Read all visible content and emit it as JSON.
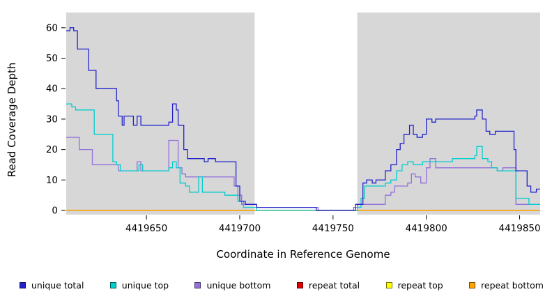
{
  "chart_data": {
    "type": "line",
    "step": true,
    "title": "",
    "xlabel": "Coordinate in Reference Genome",
    "ylabel": "Read Coverage Depth",
    "xlim": [
      4419607,
      4419861
    ],
    "ylim": [
      0,
      65
    ],
    "xticks": [
      4419650,
      4419700,
      4419750,
      4419800,
      4419850
    ],
    "yticks": [
      0,
      10,
      20,
      30,
      40,
      50,
      60
    ],
    "grid": false,
    "legend_position": "bottom",
    "panel_color": "#d7d7d7",
    "shaded_regions": [
      {
        "x0": 4419607,
        "x1": 4419708
      },
      {
        "x0": 4419763,
        "x1": 4419861
      }
    ],
    "series": [
      {
        "name": "unique total",
        "color": "#2222cc",
        "points": [
          [
            4419607,
            59
          ],
          [
            4419609,
            60
          ],
          [
            4419611,
            59
          ],
          [
            4419613,
            53
          ],
          [
            4419617,
            53
          ],
          [
            4419619,
            46
          ],
          [
            4419622,
            46
          ],
          [
            4419623,
            40
          ],
          [
            4419632,
            40
          ],
          [
            4419634,
            36
          ],
          [
            4419635,
            31
          ],
          [
            4419637,
            28
          ],
          [
            4419638,
            31
          ],
          [
            4419641,
            31
          ],
          [
            4419643,
            28
          ],
          [
            4419645,
            31
          ],
          [
            4419647,
            28
          ],
          [
            4419661,
            28
          ],
          [
            4419662,
            29
          ],
          [
            4419664,
            35
          ],
          [
            4419666,
            33
          ],
          [
            4419667,
            28
          ],
          [
            4419670,
            20
          ],
          [
            4419672,
            17
          ],
          [
            4419680,
            17
          ],
          [
            4419681,
            16
          ],
          [
            4419683,
            17
          ],
          [
            4419687,
            16
          ],
          [
            4419696,
            16
          ],
          [
            4419698,
            8
          ],
          [
            4419700,
            3
          ],
          [
            4419703,
            2
          ],
          [
            4419707,
            2
          ],
          [
            4419709,
            1
          ],
          [
            4419738,
            1
          ],
          [
            4419741,
            0
          ],
          [
            4419759,
            0
          ],
          [
            4419762,
            2
          ],
          [
            4419765,
            2
          ],
          [
            4419766,
            9
          ],
          [
            4419768,
            10
          ],
          [
            4419771,
            9
          ],
          [
            4419773,
            10
          ],
          [
            4419777,
            10
          ],
          [
            4419778,
            13
          ],
          [
            4419781,
            15
          ],
          [
            4419784,
            20
          ],
          [
            4419786,
            22
          ],
          [
            4419788,
            25
          ],
          [
            4419791,
            28
          ],
          [
            4419793,
            25
          ],
          [
            4419795,
            24
          ],
          [
            4419798,
            25
          ],
          [
            4419800,
            30
          ],
          [
            4419803,
            29
          ],
          [
            4419805,
            30
          ],
          [
            4419824,
            30
          ],
          [
            4419826,
            31
          ],
          [
            4419827,
            33
          ],
          [
            4419830,
            30
          ],
          [
            4419832,
            26
          ],
          [
            4419834,
            25
          ],
          [
            4419837,
            26
          ],
          [
            4419845,
            26
          ],
          [
            4419847,
            20
          ],
          [
            4419848,
            13
          ],
          [
            4419853,
            13
          ],
          [
            4419854,
            8
          ],
          [
            4419856,
            6
          ],
          [
            4419859,
            7
          ]
        ]
      },
      {
        "name": "unique top",
        "color": "#00cdcd",
        "points": [
          [
            4419607,
            35
          ],
          [
            4419610,
            34
          ],
          [
            4419612,
            33
          ],
          [
            4419620,
            33
          ],
          [
            4419622,
            25
          ],
          [
            4419630,
            25
          ],
          [
            4419632,
            16
          ],
          [
            4419634,
            15
          ],
          [
            4419636,
            13
          ],
          [
            4419644,
            13
          ],
          [
            4419646,
            15
          ],
          [
            4419648,
            13
          ],
          [
            4419660,
            13
          ],
          [
            4419662,
            14
          ],
          [
            4419664,
            16
          ],
          [
            4419666,
            14
          ],
          [
            4419668,
            9
          ],
          [
            4419671,
            8
          ],
          [
            4419673,
            6
          ],
          [
            4419677,
            6
          ],
          [
            4419678,
            11
          ],
          [
            4419680,
            6
          ],
          [
            4419690,
            6
          ],
          [
            4419692,
            5
          ],
          [
            4419697,
            5
          ],
          [
            4419699,
            3
          ],
          [
            4419702,
            1
          ],
          [
            4419707,
            1
          ],
          [
            4419709,
            0
          ],
          [
            4419760,
            0
          ],
          [
            4419763,
            1
          ],
          [
            4419765,
            4
          ],
          [
            4419767,
            8
          ],
          [
            4419777,
            8
          ],
          [
            4419778,
            9
          ],
          [
            4419781,
            10
          ],
          [
            4419784,
            13
          ],
          [
            4419787,
            15
          ],
          [
            4419790,
            16
          ],
          [
            4419793,
            15
          ],
          [
            4419798,
            16
          ],
          [
            4419812,
            16
          ],
          [
            4419814,
            17
          ],
          [
            4419824,
            17
          ],
          [
            4419826,
            18
          ],
          [
            4419827,
            21
          ],
          [
            4419830,
            17
          ],
          [
            4419833,
            16
          ],
          [
            4419835,
            14
          ],
          [
            4419838,
            13
          ],
          [
            4419847,
            13
          ],
          [
            4419848,
            4
          ],
          [
            4419853,
            4
          ],
          [
            4419855,
            2
          ]
        ]
      },
      {
        "name": "unique bottom",
        "color": "#9370db",
        "points": [
          [
            4419607,
            24
          ],
          [
            4419612,
            24
          ],
          [
            4419614,
            20
          ],
          [
            4419619,
            20
          ],
          [
            4419621,
            15
          ],
          [
            4419633,
            15
          ],
          [
            4419635,
            13
          ],
          [
            4419644,
            13
          ],
          [
            4419645,
            16
          ],
          [
            4419647,
            13
          ],
          [
            4419660,
            13
          ],
          [
            4419662,
            23
          ],
          [
            4419665,
            23
          ],
          [
            4419667,
            14
          ],
          [
            4419669,
            12
          ],
          [
            4419671,
            11
          ],
          [
            4419695,
            11
          ],
          [
            4419697,
            8
          ],
          [
            4419699,
            5
          ],
          [
            4419701,
            2
          ],
          [
            4419707,
            2
          ],
          [
            4419709,
            1
          ],
          [
            4419740,
            1
          ],
          [
            4419742,
            0
          ],
          [
            4419758,
            0
          ],
          [
            4419761,
            1
          ],
          [
            4419763,
            2
          ],
          [
            4419777,
            2
          ],
          [
            4419778,
            5
          ],
          [
            4419781,
            6
          ],
          [
            4419783,
            8
          ],
          [
            4419789,
            8
          ],
          [
            4419790,
            9
          ],
          [
            4419792,
            12
          ],
          [
            4419794,
            11
          ],
          [
            4419797,
            9
          ],
          [
            4419800,
            14
          ],
          [
            4419802,
            17
          ],
          [
            4419805,
            14
          ],
          [
            4419830,
            14
          ],
          [
            4419834,
            14
          ],
          [
            4419838,
            13
          ],
          [
            4419841,
            14
          ],
          [
            4419847,
            14
          ],
          [
            4419848,
            2
          ]
        ]
      },
      {
        "name": "repeat total",
        "color": "#dd0000",
        "points": [
          [
            4419607,
            0
          ]
        ]
      },
      {
        "name": "repeat top",
        "color": "#ffff00",
        "points": [
          [
            4419607,
            0
          ]
        ]
      },
      {
        "name": "repeat bottom",
        "color": "#ffa500",
        "points": [
          [
            4419607,
            0
          ]
        ]
      }
    ]
  }
}
